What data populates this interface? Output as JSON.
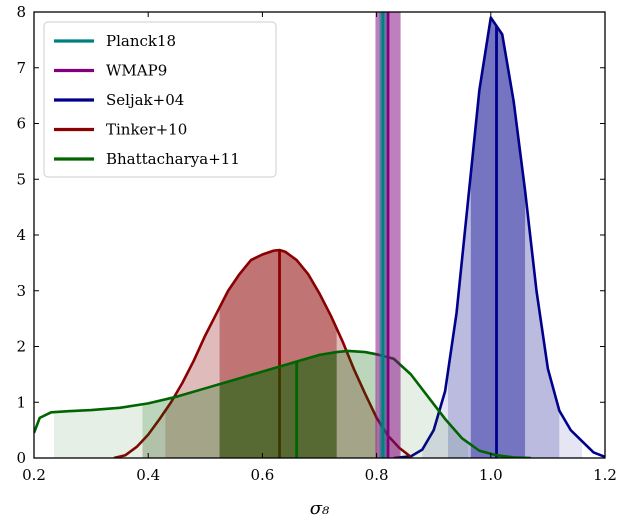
{
  "chart_data": {
    "type": "line",
    "title": "",
    "xlabel": "σ₈",
    "ylabel": "",
    "xlim": [
      0.2,
      1.2
    ],
    "ylim": [
      0,
      8
    ],
    "xticks": [
      "0.2",
      "0.4",
      "0.6",
      "0.8",
      "1.0",
      "1.2"
    ],
    "yticks": [
      "0",
      "1",
      "2",
      "3",
      "4",
      "5",
      "6",
      "7",
      "8"
    ],
    "grid": false,
    "legend_position": "top-left",
    "series": [
      {
        "name": "Planck18",
        "kind": "band",
        "color": "#008080",
        "center": 0.811,
        "band_1sigma": [
          0.805,
          0.817
        ]
      },
      {
        "name": "WMAP9",
        "kind": "band",
        "color": "#800080",
        "center": 0.82,
        "band_1sigma": [
          0.798,
          0.842
        ]
      },
      {
        "name": "Seljak+04",
        "kind": "pdf",
        "color": "#00008b",
        "median": 1.01,
        "band_1sigma": [
          0.965,
          1.06
        ],
        "band_2sigma": [
          0.925,
          1.12
        ],
        "band_3sigma": [
          0.88,
          1.16
        ],
        "x": [
          0.83,
          0.86,
          0.88,
          0.9,
          0.92,
          0.94,
          0.96,
          0.98,
          1.0,
          1.01,
          1.02,
          1.04,
          1.06,
          1.08,
          1.1,
          1.12,
          1.14,
          1.16,
          1.18,
          1.2
        ],
        "y": [
          0.0,
          0.03,
          0.15,
          0.5,
          1.2,
          2.6,
          4.6,
          6.6,
          7.9,
          7.75,
          7.6,
          6.4,
          4.8,
          3.0,
          1.6,
          0.85,
          0.5,
          0.3,
          0.1,
          0.02
        ]
      },
      {
        "name": "Tinker+10",
        "kind": "pdf",
        "color": "#8b0000",
        "median": 0.63,
        "band_1sigma": [
          0.525,
          0.73
        ],
        "band_2sigma": [
          0.43,
          0.8
        ],
        "band_3sigma": [
          0.39,
          0.84
        ],
        "x": [
          0.34,
          0.36,
          0.38,
          0.4,
          0.42,
          0.44,
          0.46,
          0.48,
          0.5,
          0.52,
          0.54,
          0.56,
          0.58,
          0.6,
          0.62,
          0.63,
          0.64,
          0.66,
          0.68,
          0.7,
          0.72,
          0.74,
          0.76,
          0.78,
          0.8,
          0.82,
          0.84,
          0.86
        ],
        "y": [
          0.0,
          0.05,
          0.2,
          0.42,
          0.7,
          1.0,
          1.35,
          1.75,
          2.2,
          2.6,
          3.0,
          3.3,
          3.55,
          3.65,
          3.72,
          3.73,
          3.7,
          3.55,
          3.3,
          2.95,
          2.55,
          2.1,
          1.6,
          1.15,
          0.72,
          0.4,
          0.18,
          0.02
        ]
      },
      {
        "name": "Bhattacharya+11",
        "kind": "pdf",
        "color": "#006400",
        "median": 0.66,
        "band_1sigma": [
          0.525,
          0.73
        ],
        "band_2sigma": [
          0.39,
          0.8
        ],
        "band_3sigma": [
          0.235,
          0.96
        ],
        "x": [
          0.2,
          0.21,
          0.23,
          0.26,
          0.3,
          0.35,
          0.4,
          0.45,
          0.5,
          0.55,
          0.6,
          0.65,
          0.7,
          0.73,
          0.75,
          0.78,
          0.8,
          0.83,
          0.86,
          0.89,
          0.92,
          0.95,
          0.98,
          1.01,
          1.04,
          1.07
        ],
        "y": [
          0.45,
          0.72,
          0.82,
          0.84,
          0.86,
          0.9,
          0.98,
          1.1,
          1.25,
          1.4,
          1.55,
          1.7,
          1.85,
          1.9,
          1.92,
          1.9,
          1.86,
          1.78,
          1.5,
          1.1,
          0.7,
          0.35,
          0.13,
          0.05,
          0.01,
          0.0
        ]
      }
    ]
  }
}
